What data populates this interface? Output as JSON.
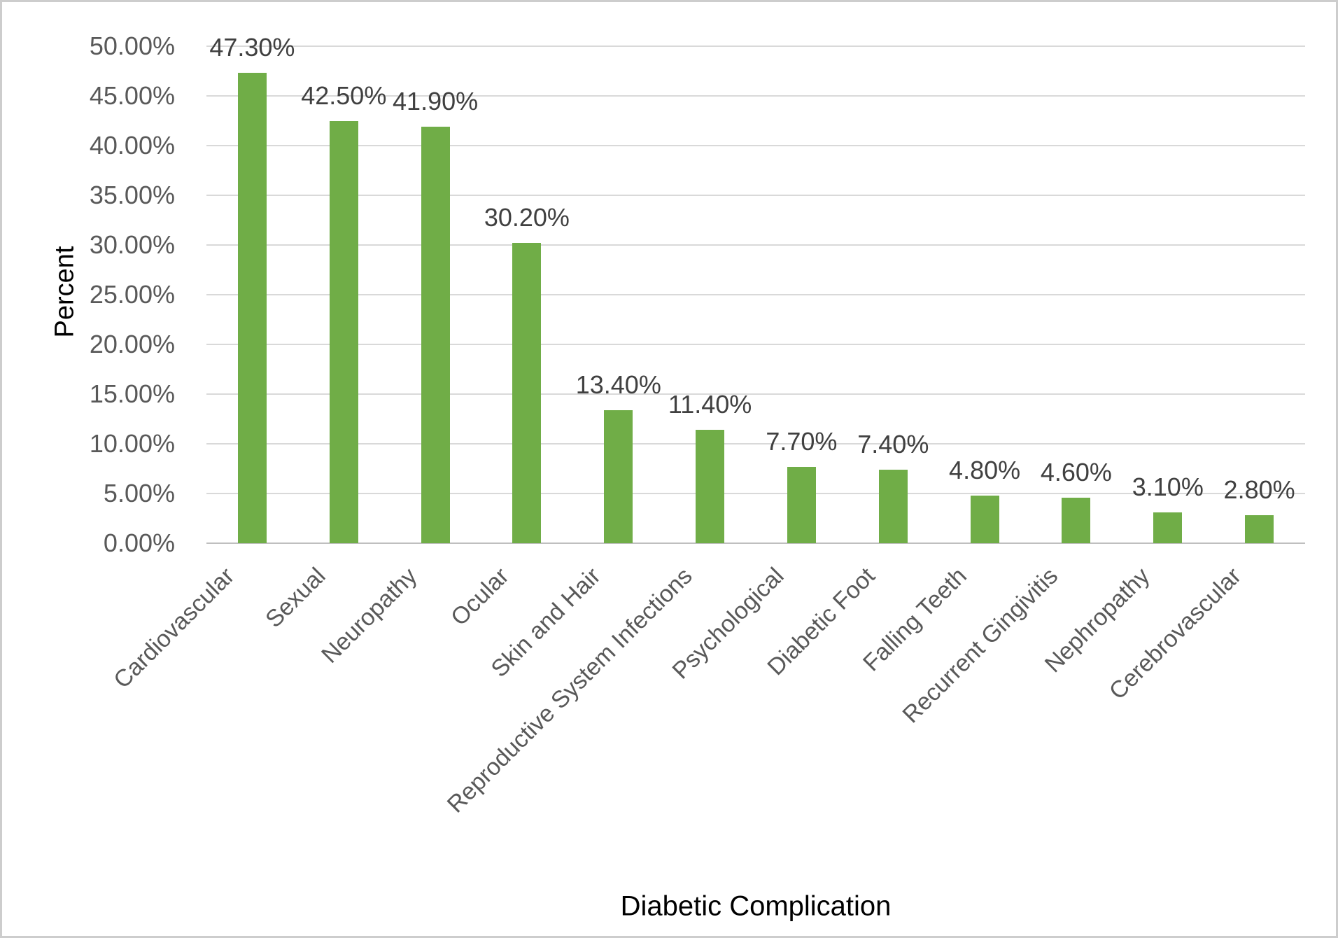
{
  "chart_data": {
    "type": "bar",
    "title": "",
    "xlabel": "Diabetic Complication",
    "ylabel": "Percent",
    "categories": [
      "Cardiovascular",
      "Sexual",
      "Neuropathy",
      "Ocular",
      "Skin and Hair",
      "Reproductive System Infections",
      "Psychological",
      "Diabetic Foot",
      "Falling Teeth",
      "Recurrent Gingivitis",
      "Nephropathy",
      "Cerebrovascular"
    ],
    "values": [
      47.3,
      42.5,
      41.9,
      30.2,
      13.4,
      11.4,
      7.7,
      7.4,
      4.8,
      4.6,
      3.1,
      2.8
    ],
    "value_labels": [
      "47.30%",
      "42.50%",
      "41.90%",
      "30.20%",
      "13.40%",
      "11.40%",
      "7.70%",
      "7.40%",
      "4.80%",
      "4.60%",
      "3.10%",
      "2.80%"
    ],
    "ytick_labels": [
      "0.00%",
      "5.00%",
      "10.00%",
      "15.00%",
      "20.00%",
      "25.00%",
      "30.00%",
      "35.00%",
      "40.00%",
      "45.00%",
      "50.00%"
    ],
    "ylim": [
      0,
      50
    ],
    "ytick_step": 5,
    "grid": true,
    "legend": "none",
    "bar_color": "#70AD47",
    "axis_text_color": "#595959",
    "data_label_color": "#404040",
    "gridline_color": "#D9D9D9",
    "axis_line_color": "#BFBFBF"
  }
}
